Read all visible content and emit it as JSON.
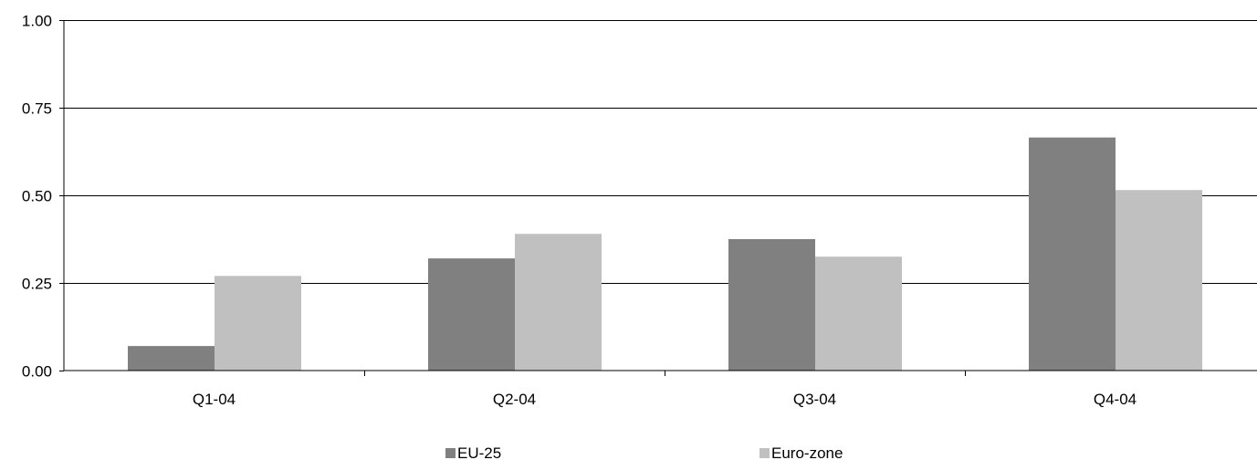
{
  "chart_data": {
    "type": "bar",
    "categories": [
      "Q1-04",
      "Q2-04",
      "Q3-04",
      "Q4-04"
    ],
    "series": [
      {
        "name": "EU-25",
        "values": [
          0.07,
          0.32,
          0.375,
          0.665
        ],
        "color": "#808080"
      },
      {
        "name": "Euro-zone",
        "values": [
          0.27,
          0.39,
          0.325,
          0.515
        ],
        "color": "#c0c0c0"
      }
    ],
    "yticks": [
      "0.00",
      "0.25",
      "0.50",
      "0.75",
      "1.00"
    ],
    "ylim": [
      0,
      1
    ],
    "grid": true,
    "legend": "bottom"
  }
}
